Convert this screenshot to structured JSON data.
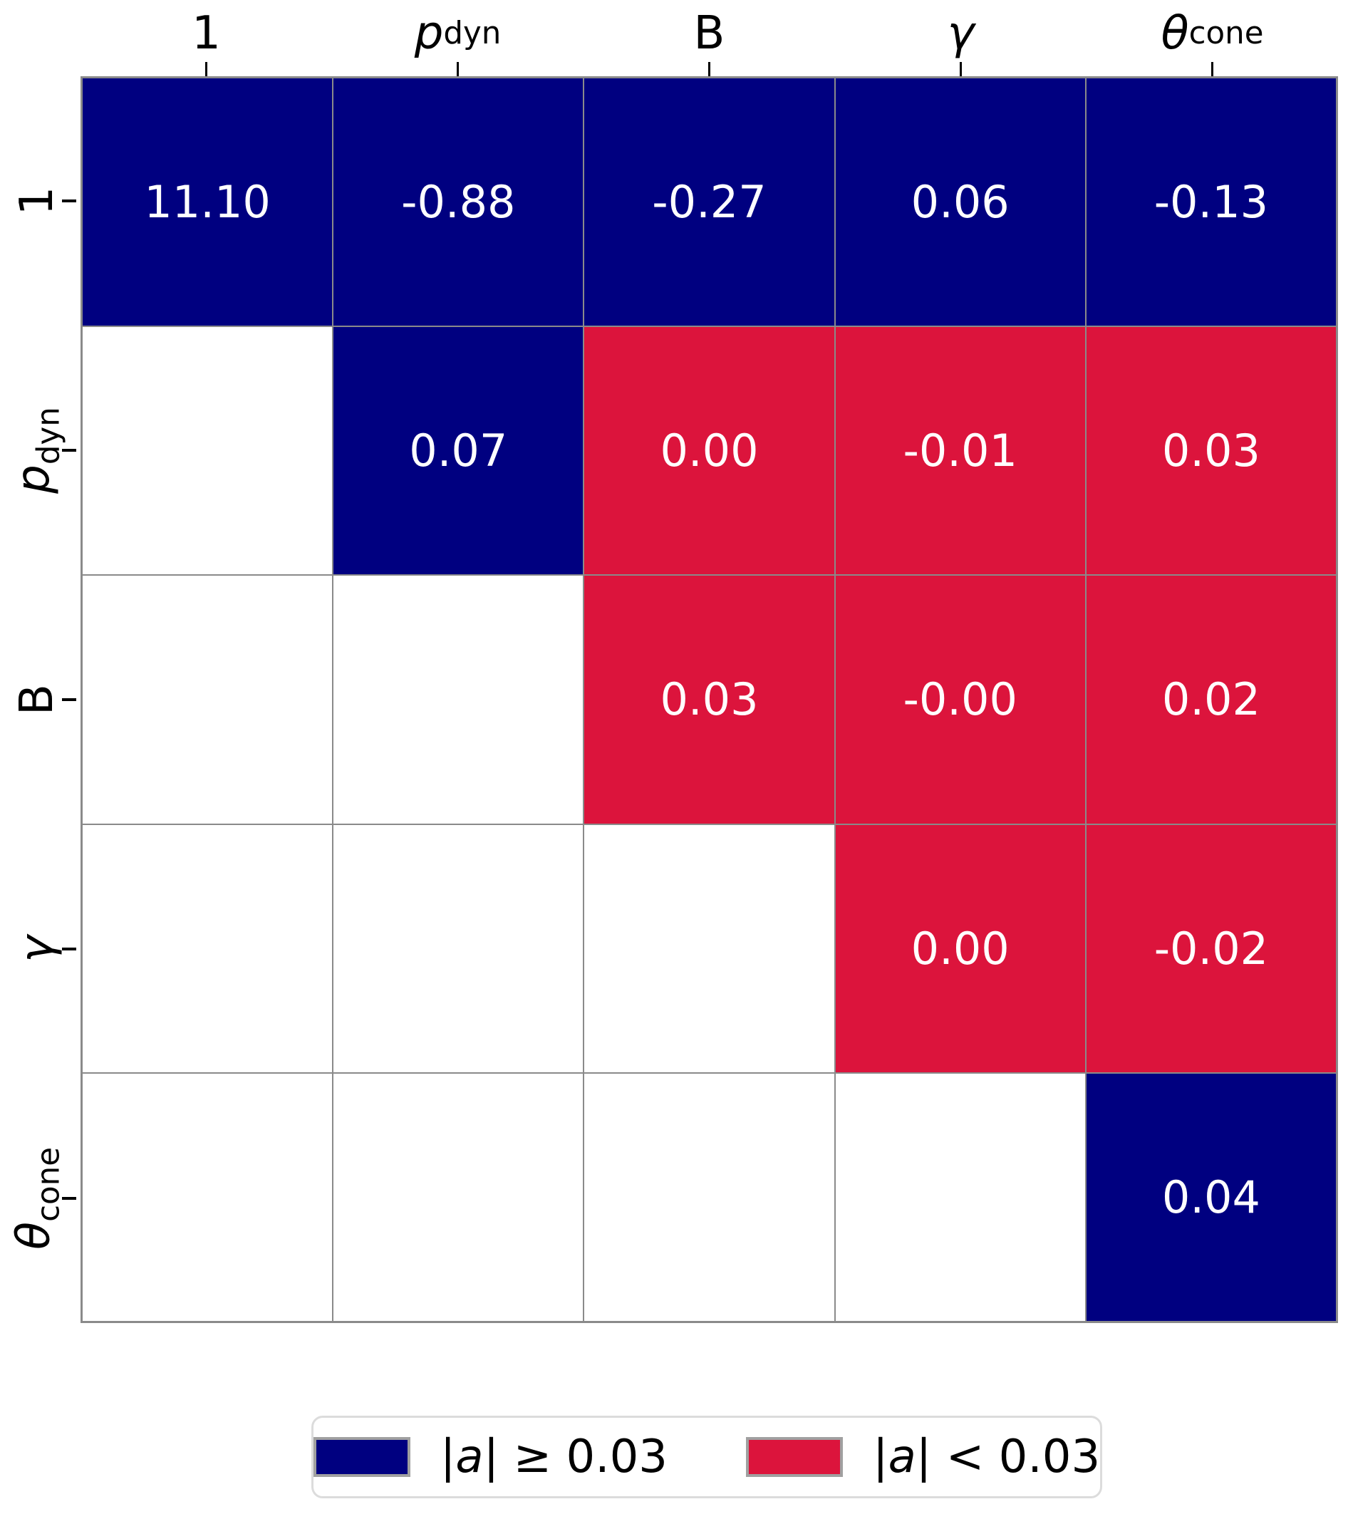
{
  "chart_data": {
    "type": "heatmap",
    "title": "",
    "description": "Upper-triangular coefficient matrix with cells colored by magnitude threshold",
    "columns": [
      {
        "id": "1",
        "label_html": "1"
      },
      {
        "id": "p_dyn",
        "label_html": "<i>p</i><sub>dyn</sub>"
      },
      {
        "id": "B",
        "label_html": "B"
      },
      {
        "id": "gamma",
        "label_html": "<i>γ</i>"
      },
      {
        "id": "theta_cone",
        "label_html": "<i>θ</i><sub>cone</sub>"
      }
    ],
    "rows": [
      {
        "id": "1",
        "label_html": "1"
      },
      {
        "id": "p_dyn",
        "label_html": "<i>p</i><sub>dyn</sub>"
      },
      {
        "id": "B",
        "label_html": "B"
      },
      {
        "id": "gamma",
        "label_html": "<i>γ</i>"
      },
      {
        "id": "theta_cone",
        "label_html": "<i>θ</i><sub>cone</sub>"
      }
    ],
    "cells": [
      [
        {
          "value": 11.1,
          "text": "11.10",
          "category": "ge"
        },
        {
          "value": -0.88,
          "text": "-0.88",
          "category": "ge"
        },
        {
          "value": -0.27,
          "text": "-0.27",
          "category": "ge"
        },
        {
          "value": 0.06,
          "text": "0.06",
          "category": "ge"
        },
        {
          "value": -0.13,
          "text": "-0.13",
          "category": "ge"
        }
      ],
      [
        null,
        {
          "value": 0.07,
          "text": "0.07",
          "category": "ge"
        },
        {
          "value": 0.0,
          "text": "0.00",
          "category": "lt"
        },
        {
          "value": -0.01,
          "text": "-0.01",
          "category": "lt"
        },
        {
          "value": 0.03,
          "text": "0.03",
          "category": "lt"
        }
      ],
      [
        null,
        null,
        {
          "value": 0.03,
          "text": "0.03",
          "category": "lt"
        },
        {
          "value": -0.0,
          "text": "-0.00",
          "category": "lt"
        },
        {
          "value": 0.02,
          "text": "0.02",
          "category": "lt"
        }
      ],
      [
        null,
        null,
        null,
        {
          "value": 0.0,
          "text": "0.00",
          "category": "lt"
        },
        {
          "value": -0.02,
          "text": "-0.02",
          "category": "lt"
        }
      ],
      [
        null,
        null,
        null,
        null,
        {
          "value": 0.04,
          "text": "0.04",
          "category": "ge"
        }
      ]
    ],
    "colors": {
      "categories": {
        "ge": "#000080",
        "lt": "#DC143C"
      },
      "grid_line": "#8a8a8a",
      "cell_text": "#ffffff",
      "label_text": "#000000",
      "legend_border": "#dcdcdc",
      "swatch_border": "#a0a0a0",
      "background": "#ffffff"
    },
    "legend": {
      "position": "bottom-center",
      "entries": [
        {
          "category": "ge",
          "label_html": "|<i>a</i>| ≥ 0.03"
        },
        {
          "category": "lt",
          "label_html": "|<i>a</i>| &lt; 0.03"
        }
      ]
    },
    "layout_hints": {
      "grid": "on",
      "upper_triangle_only": true,
      "x_axis_side": "top",
      "y_axis_side": "left"
    }
  }
}
